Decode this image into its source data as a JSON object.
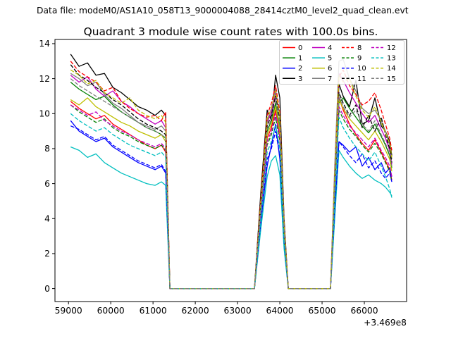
{
  "figure": {
    "header": "Data file: modeM0/AS1A10_058T13_9000004088_28414cztM0_level2_quad_clean.evt",
    "background": "#ffffff",
    "frame_color": "#000000"
  },
  "chart_data": {
    "type": "line",
    "title": "Quadrant 3 module wise count rates with 100.0s bins.",
    "xlabel": "",
    "ylabel": "",
    "x_offset_text": "+3.469e8",
    "xlim": [
      58680,
      67000
    ],
    "ylim": [
      -0.74,
      14.24
    ],
    "xticks": [
      59000,
      60000,
      61000,
      62000,
      63000,
      64000,
      65000,
      66000
    ],
    "yticks": [
      0,
      2,
      4,
      6,
      8,
      10,
      12,
      14
    ],
    "grid": false,
    "legend_position": "upper right",
    "legend_columns": 4,
    "legend_background": "#ffffff",
    "legend_border": "#cccccc",
    "x_keypoints": [
      59050,
      59250,
      59450,
      59650,
      59850,
      60050,
      60250,
      60450,
      60650,
      60850,
      61050,
      61200,
      61300,
      61400,
      63400,
      63550,
      63700,
      63800,
      63900,
      64000,
      64100,
      64200,
      65200,
      65300,
      65400,
      65500,
      65650,
      65800,
      65950,
      66100,
      66250,
      66400,
      66500,
      66600,
      66650
    ],
    "series": [
      {
        "name": "0",
        "color": "#ff0000",
        "dash": false,
        "y": [
          10.7,
          10.3,
          10.0,
          9.7,
          9.9,
          9.4,
          9.1,
          8.8,
          8.5,
          8.2,
          8.0,
          8.2,
          7.8,
          0,
          0,
          4.4,
          8.6,
          9.2,
          10.2,
          8.8,
          3.2,
          0,
          0,
          5.5,
          10.9,
          10.2,
          9.4,
          8.8,
          8.3,
          7.9,
          8.5,
          7.8,
          7.3,
          6.8,
          6.2
        ]
      },
      {
        "name": "1",
        "color": "#008000",
        "dash": false,
        "y": [
          11.8,
          11.4,
          11.1,
          10.8,
          11.0,
          10.5,
          10.1,
          9.8,
          9.5,
          9.2,
          9.0,
          8.8,
          8.6,
          0,
          0,
          4.6,
          9.0,
          9.6,
          10.6,
          9.2,
          3.4,
          0,
          0,
          6.0,
          10.6,
          10.9,
          10.3,
          9.8,
          9.3,
          8.9,
          9.4,
          8.7,
          8.2,
          7.6,
          6.9
        ]
      },
      {
        "name": "2",
        "color": "#0000ff",
        "dash": false,
        "y": [
          9.6,
          9.0,
          8.7,
          8.4,
          8.6,
          8.1,
          7.8,
          7.5,
          7.2,
          7.0,
          6.8,
          7.0,
          6.6,
          0,
          0,
          3.8,
          7.0,
          8.2,
          9.4,
          7.4,
          2.6,
          0,
          0,
          4.5,
          8.4,
          8.2,
          7.8,
          8.1,
          7.0,
          7.5,
          6.8,
          7.2,
          6.6,
          6.9,
          6.4
        ]
      },
      {
        "name": "3",
        "color": "#000000",
        "dash": false,
        "y": [
          13.4,
          12.7,
          12.9,
          12.2,
          12.3,
          11.5,
          11.2,
          10.8,
          10.4,
          10.2,
          9.9,
          10.2,
          9.9,
          0,
          0,
          5.5,
          10.2,
          9.6,
          12.2,
          10.9,
          4.0,
          0,
          0,
          6.0,
          11.7,
          11.0,
          10.4,
          11.9,
          9.4,
          9.6,
          10.9,
          9.3,
          9.0,
          8.4,
          7.6
        ]
      },
      {
        "name": "4",
        "color": "#bf00bf",
        "dash": false,
        "y": [
          12.2,
          11.8,
          12.1,
          11.4,
          11.0,
          11.3,
          10.7,
          10.4,
          10.0,
          9.7,
          9.4,
          9.6,
          9.2,
          0,
          0,
          5.0,
          9.5,
          10.1,
          11.2,
          9.8,
          3.6,
          0,
          0,
          6.5,
          12.3,
          11.9,
          11.2,
          10.6,
          10.0,
          9.5,
          9.9,
          9.1,
          8.6,
          7.9,
          7.1
        ]
      },
      {
        "name": "5",
        "color": "#00bfbf",
        "dash": false,
        "y": [
          8.1,
          7.9,
          7.5,
          7.7,
          7.2,
          6.9,
          6.6,
          6.4,
          6.2,
          6.0,
          5.9,
          6.1,
          5.9,
          0,
          0,
          3.4,
          6.4,
          7.3,
          7.6,
          6.5,
          2.3,
          0,
          0,
          4.0,
          7.9,
          7.5,
          7.0,
          6.6,
          6.3,
          6.5,
          6.2,
          6.0,
          5.8,
          5.5,
          5.3
        ]
      },
      {
        "name": "6",
        "color": "#bfbf00",
        "dash": false,
        "y": [
          10.8,
          10.5,
          10.9,
          10.4,
          10.1,
          9.8,
          9.5,
          9.3,
          9.0,
          8.8,
          8.6,
          8.8,
          8.4,
          0,
          0,
          4.5,
          8.8,
          9.4,
          10.4,
          9.0,
          3.3,
          0,
          0,
          6.0,
          10.8,
          10.3,
          9.7,
          9.3,
          8.9,
          8.5,
          9.0,
          8.4,
          7.9,
          7.4,
          6.7
        ]
      },
      {
        "name": "7",
        "color": "#7f7f7f",
        "dash": false,
        "y": [
          12.3,
          12.0,
          11.6,
          11.8,
          11.1,
          10.6,
          10.3,
          9.9,
          9.5,
          9.3,
          9.1,
          9.3,
          9.0,
          0,
          0,
          5.0,
          9.6,
          10.3,
          11.4,
          9.8,
          3.6,
          0,
          0,
          7.0,
          13.0,
          13.1,
          12.0,
          11.3,
          10.3,
          10.0,
          10.2,
          9.6,
          9.0,
          8.2,
          7.4
        ]
      },
      {
        "name": "8",
        "color": "#ff0000",
        "dash": true,
        "y": [
          13.0,
          12.4,
          12.1,
          11.8,
          11.3,
          11.5,
          10.7,
          10.3,
          10.0,
          9.8,
          9.9,
          9.6,
          10.1,
          0,
          0,
          5.2,
          9.9,
          10.6,
          11.6,
          10.1,
          3.8,
          0,
          0,
          6.5,
          12.1,
          12.5,
          11.6,
          11.1,
          10.5,
          10.7,
          11.2,
          10.2,
          9.4,
          8.6,
          7.9
        ]
      },
      {
        "name": "9",
        "color": "#008000",
        "dash": true,
        "y": [
          10.5,
          10.1,
          9.8,
          9.5,
          9.7,
          9.2,
          8.9,
          8.7,
          8.4,
          8.2,
          8.0,
          8.2,
          7.9,
          0,
          0,
          4.2,
          8.2,
          8.8,
          9.8,
          8.4,
          3.0,
          0,
          0,
          5.5,
          10.2,
          9.7,
          9.1,
          8.7,
          8.2,
          7.8,
          8.3,
          7.7,
          7.2,
          6.7,
          6.1
        ]
      },
      {
        "name": "10",
        "color": "#0000ff",
        "dash": true,
        "y": [
          9.3,
          9.1,
          8.8,
          8.5,
          8.7,
          8.2,
          7.9,
          7.6,
          7.3,
          7.1,
          6.9,
          7.1,
          6.7,
          0,
          0,
          3.8,
          7.4,
          8.0,
          9.0,
          7.6,
          2.7,
          0,
          0,
          4.5,
          8.4,
          8.1,
          7.6,
          7.2,
          7.7,
          6.9,
          7.3,
          6.6,
          6.3,
          6.6,
          6.1
        ]
      },
      {
        "name": "11",
        "color": "#000000",
        "dash": true,
        "y": [
          12.8,
          12.2,
          11.9,
          11.5,
          11.2,
          10.8,
          10.5,
          10.1,
          9.7,
          9.4,
          9.2,
          9.0,
          8.8,
          0,
          0,
          4.8,
          9.3,
          9.9,
          11.0,
          9.6,
          3.5,
          0,
          0,
          6.0,
          11.2,
          10.6,
          9.9,
          10.5,
          9.2,
          9.9,
          9.0,
          9.8,
          8.8,
          8.0,
          7.2
        ]
      },
      {
        "name": "12",
        "color": "#bf00bf",
        "dash": true,
        "y": [
          10.5,
          10.2,
          9.9,
          10.1,
          9.6,
          9.3,
          9.0,
          8.8,
          8.5,
          8.3,
          8.1,
          8.3,
          8.0,
          0,
          0,
          4.3,
          8.4,
          9.0,
          10.0,
          8.6,
          3.1,
          0,
          0,
          5.5,
          10.4,
          9.9,
          9.3,
          8.9,
          8.5,
          8.1,
          8.6,
          7.9,
          7.5,
          7.0,
          6.4
        ]
      },
      {
        "name": "13",
        "color": "#00bfbf",
        "dash": true,
        "y": [
          10.0,
          9.6,
          9.3,
          9.0,
          9.2,
          8.8,
          8.5,
          8.2,
          8.0,
          7.8,
          7.6,
          7.8,
          7.5,
          0,
          0,
          4.0,
          7.8,
          8.4,
          9.3,
          8.0,
          2.8,
          0,
          0,
          5.0,
          9.8,
          9.2,
          8.6,
          8.1,
          7.7,
          7.3,
          7.8,
          7.0,
          6.4,
          5.7,
          5.2
        ]
      },
      {
        "name": "14",
        "color": "#bfbf00",
        "dash": true,
        "y": [
          12.5,
          12.2,
          11.7,
          11.9,
          11.2,
          10.9,
          10.6,
          10.9,
          10.2,
          9.9,
          9.7,
          9.9,
          9.5,
          0,
          0,
          5.0,
          9.7,
          10.3,
          11.3,
          9.9,
          3.7,
          0,
          0,
          6.5,
          12.2,
          11.8,
          12.0,
          11.0,
          10.2,
          9.8,
          10.4,
          9.5,
          8.9,
          8.3,
          7.5
        ]
      },
      {
        "name": "15",
        "color": "#7f7f7f",
        "dash": true,
        "y": [
          12.0,
          11.6,
          11.3,
          11.0,
          10.7,
          10.4,
          10.1,
          9.8,
          9.5,
          9.2,
          9.0,
          8.8,
          8.6,
          0,
          0,
          4.6,
          9.1,
          9.7,
          10.8,
          9.4,
          3.4,
          0,
          0,
          6.0,
          11.0,
          10.4,
          9.8,
          10.2,
          9.4,
          9.0,
          9.6,
          8.8,
          8.3,
          7.7,
          7.0
        ]
      }
    ]
  }
}
